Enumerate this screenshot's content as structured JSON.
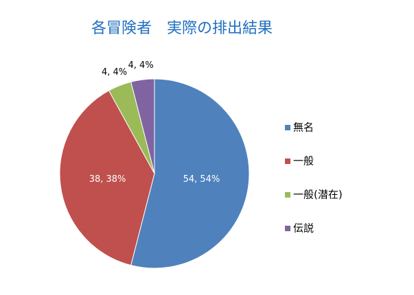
{
  "chart_data": {
    "type": "pie",
    "title": "各冒険者　実際の排出結果",
    "categories": [
      "無名",
      "一般",
      "一般(潜在)",
      "伝説"
    ],
    "values": [
      54,
      38,
      4,
      4
    ],
    "value_labels": [
      "54, 54%",
      "38, 38%",
      "4, 4%",
      "4, 4%"
    ],
    "colors": [
      "#4f81bd",
      "#c0504d",
      "#9bbb59",
      "#8064a2"
    ],
    "legend": "right"
  }
}
